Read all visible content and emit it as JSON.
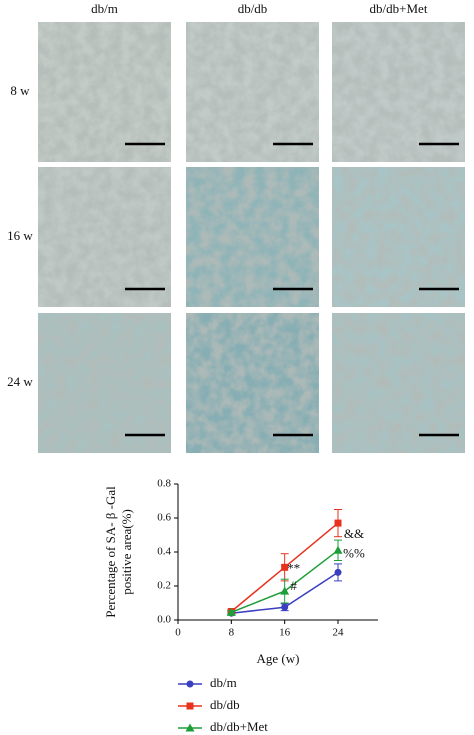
{
  "panels": {
    "columns": [
      "db/m",
      "db/db",
      "db/db+Met"
    ],
    "rows": [
      "8 w",
      "16 w",
      "24 w"
    ]
  },
  "chart_data": {
    "type": "line",
    "ylabel": [
      "Percentage of SA- β -Gal",
      "positive area(%)"
    ],
    "xlabel": "Age (w)",
    "x": [
      8,
      16,
      24
    ],
    "xlim": [
      0,
      30
    ],
    "xticks": [
      0,
      8,
      16,
      24
    ],
    "ylim": [
      0,
      0.8
    ],
    "yticks": [
      {
        "value": 0,
        "label": "0.0"
      },
      0.2,
      0.4,
      0.6,
      0.8
    ],
    "series": [
      {
        "name": "db/m",
        "color": "#3a3fbf",
        "marker": "circle",
        "values": [
          0.04,
          0.075,
          0.28
        ],
        "errors": [
          0.01,
          0.02,
          0.05
        ]
      },
      {
        "name": "db/db",
        "color": "#e8321e",
        "marker": "square",
        "values": [
          0.05,
          0.31,
          0.57
        ],
        "errors": [
          0.01,
          0.08,
          0.08
        ]
      },
      {
        "name": "db/db+Met",
        "color": "#1e9e3a",
        "marker": "triangle",
        "values": [
          0.045,
          0.17,
          0.41
        ],
        "errors": [
          0.01,
          0.07,
          0.06
        ]
      }
    ],
    "annotations": [
      "**",
      "#",
      "&&",
      "%%"
    ]
  }
}
